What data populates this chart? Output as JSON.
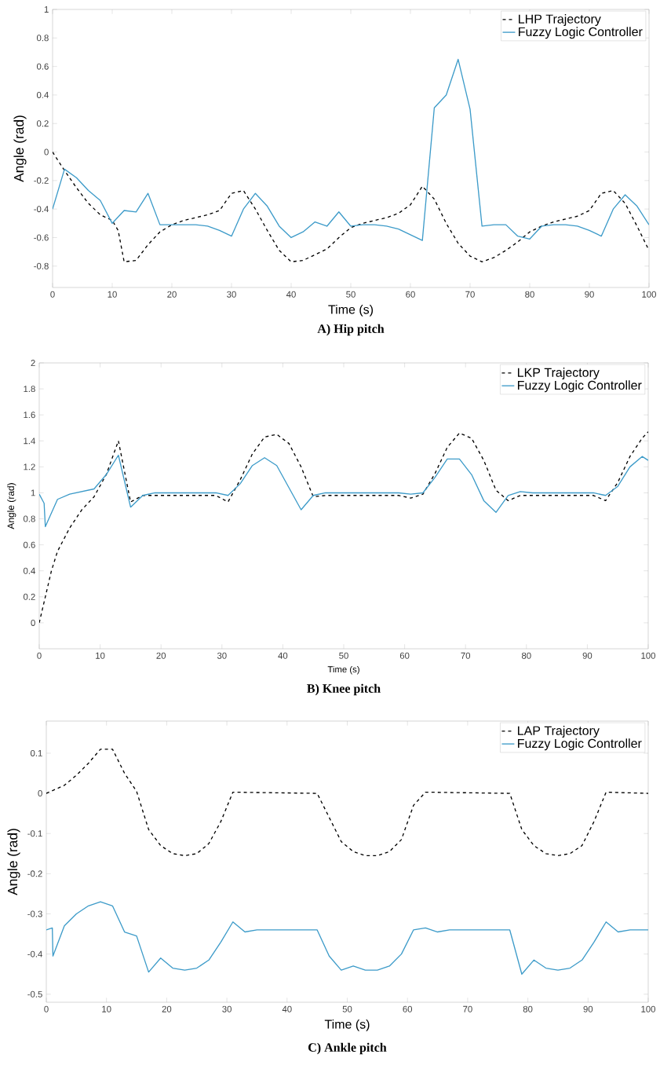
{
  "chart_data": [
    {
      "type": "line",
      "title": "**A) Hip pitch**",
      "xlabel": "Time (s)",
      "ylabel": "Angle (rad)",
      "xlim": [
        0,
        100
      ],
      "ylim": [
        -0.95,
        1
      ],
      "xticks": [
        0,
        10,
        20,
        30,
        40,
        50,
        60,
        70,
        80,
        90,
        100
      ],
      "yticks": [
        -0.8,
        -0.6,
        -0.4,
        -0.2,
        0,
        0.2,
        0.4,
        0.6,
        0.8,
        1
      ],
      "legend": "top right",
      "grid": false,
      "series": [
        {
          "name": "LHP  Trajectory",
          "color": "#000000",
          "line_style": "dashed",
          "x": [
            0,
            2,
            4,
            6,
            8,
            10,
            11,
            12,
            14,
            16,
            18,
            20,
            22,
            24,
            26,
            28,
            30,
            32,
            34,
            36,
            38,
            40,
            42,
            44,
            46,
            48,
            50,
            52,
            54,
            56,
            58,
            60,
            62,
            64,
            66,
            68,
            70,
            72,
            74,
            76,
            78,
            80,
            82,
            84,
            86,
            88,
            90,
            92,
            94,
            96,
            98,
            100
          ],
          "values": [
            0,
            -0.13,
            -0.25,
            -0.36,
            -0.44,
            -0.48,
            -0.55,
            -0.77,
            -0.76,
            -0.65,
            -0.56,
            -0.51,
            -0.48,
            -0.46,
            -0.44,
            -0.41,
            -0.29,
            -0.27,
            -0.4,
            -0.55,
            -0.69,
            -0.77,
            -0.76,
            -0.72,
            -0.68,
            -0.6,
            -0.53,
            -0.5,
            -0.48,
            -0.46,
            -0.43,
            -0.37,
            -0.24,
            -0.33,
            -0.5,
            -0.64,
            -0.73,
            -0.77,
            -0.74,
            -0.69,
            -0.63,
            -0.56,
            -0.52,
            -0.49,
            -0.47,
            -0.45,
            -0.41,
            -0.29,
            -0.27,
            -0.36,
            -0.52,
            -0.69
          ]
        },
        {
          "name": "Fuzzy Logic Controller",
          "color": "#3d9bc9",
          "line_style": "solid",
          "x": [
            0,
            2,
            4,
            6,
            8,
            10,
            12,
            14,
            16,
            18,
            20,
            22,
            24,
            26,
            28,
            30,
            32,
            34,
            36,
            38,
            40,
            42,
            44,
            46,
            48,
            50,
            52,
            54,
            56,
            58,
            60,
            62,
            64,
            66,
            68,
            70,
            72,
            74,
            76,
            78,
            80,
            82,
            84,
            86,
            88,
            90,
            92,
            94,
            96,
            98,
            100
          ],
          "values": [
            -0.4,
            -0.12,
            -0.18,
            -0.27,
            -0.34,
            -0.5,
            -0.41,
            -0.42,
            -0.29,
            -0.51,
            -0.51,
            -0.51,
            -0.51,
            -0.52,
            -0.55,
            -0.59,
            -0.4,
            -0.29,
            -0.38,
            -0.52,
            -0.6,
            -0.56,
            -0.49,
            -0.52,
            -0.42,
            -0.52,
            -0.51,
            -0.51,
            -0.52,
            -0.54,
            -0.58,
            -0.62,
            0.31,
            0.4,
            0.65,
            0.3,
            -0.52,
            -0.51,
            -0.51,
            -0.59,
            -0.61,
            -0.52,
            -0.51,
            -0.51,
            -0.52,
            -0.55,
            -0.59,
            -0.4,
            -0.3,
            -0.38,
            -0.51
          ]
        }
      ]
    },
    {
      "type": "line",
      "title": "**B) Knee pitch**",
      "xlabel": "Time (s)",
      "ylabel": "Angle (rad)",
      "xlim": [
        0,
        100
      ],
      "ylim": [
        -0.2,
        2
      ],
      "xticks": [
        0,
        10,
        20,
        30,
        40,
        50,
        60,
        70,
        80,
        90,
        100
      ],
      "yticks": [
        0,
        0.2,
        0.4,
        0.6,
        0.8,
        1,
        1.2,
        1.4,
        1.6,
        1.8,
        2
      ],
      "legend": "top right",
      "grid": false,
      "series": [
        {
          "name": "LKP Trajectory",
          "color": "#000000",
          "line_style": "dashed",
          "x": [
            0,
            1,
            2,
            3,
            5,
            7,
            9,
            11,
            13,
            15,
            17,
            21,
            29,
            31,
            33,
            35,
            37,
            39,
            41,
            43,
            45,
            47,
            59,
            61,
            63,
            65,
            67,
            69,
            71,
            73,
            75,
            77,
            79,
            91,
            93,
            95,
            97,
            99,
            100
          ],
          "values": [
            0,
            0.2,
            0.4,
            0.55,
            0.73,
            0.87,
            0.97,
            1.14,
            1.4,
            0.93,
            0.98,
            0.98,
            0.98,
            0.93,
            1.1,
            1.3,
            1.43,
            1.45,
            1.38,
            1.2,
            0.97,
            0.98,
            0.98,
            0.96,
            0.99,
            1.15,
            1.35,
            1.46,
            1.42,
            1.25,
            1.02,
            0.94,
            0.98,
            0.98,
            0.94,
            1.08,
            1.28,
            1.42,
            1.47
          ]
        },
        {
          "name": "Fuzzy Logic Controller",
          "color": "#3d9bc9",
          "line_style": "solid",
          "x": [
            0,
            0.8,
            1,
            3,
            5,
            9,
            11,
            13,
            15,
            17,
            19,
            29,
            31,
            33,
            35,
            37,
            39,
            43,
            45,
            47,
            59,
            61,
            63,
            65,
            67,
            69,
            71,
            73,
            75,
            77,
            79,
            81,
            91,
            93,
            95,
            97,
            99,
            100
          ],
          "values": [
            0.99,
            0.92,
            0.74,
            0.95,
            0.99,
            1.03,
            1.14,
            1.29,
            0.89,
            0.98,
            1.0,
            1.0,
            0.98,
            1.07,
            1.21,
            1.27,
            1.21,
            0.87,
            0.98,
            1.0,
            1.0,
            0.99,
            1.0,
            1.12,
            1.26,
            1.26,
            1.14,
            0.94,
            0.85,
            0.98,
            1.01,
            1.0,
            1.0,
            0.98,
            1.05,
            1.2,
            1.28,
            1.25
          ]
        }
      ]
    },
    {
      "type": "line",
      "title": "**C) Ankle pitch**",
      "xlabel": "Time (s)",
      "ylabel": "Angle (rad)",
      "xlim": [
        0,
        100
      ],
      "ylim": [
        -0.52,
        0.18
      ],
      "xticks": [
        0,
        10,
        20,
        30,
        40,
        50,
        60,
        70,
        80,
        90,
        100
      ],
      "yticks": [
        -0.5,
        -0.4,
        -0.3,
        -0.2,
        -0.1,
        0,
        0.1
      ],
      "legend": "top right",
      "grid": false,
      "series": [
        {
          "name": "LAP Trajectory",
          "color": "#000000",
          "line_style": "dashed",
          "x": [
            0,
            3,
            5,
            7,
            9,
            11,
            13,
            15,
            17,
            19,
            21,
            23,
            25,
            27,
            29,
            31,
            45,
            47,
            49,
            51,
            53,
            55,
            57,
            59,
            61,
            63,
            77,
            79,
            81,
            83,
            85,
            87,
            89,
            91,
            93,
            100
          ],
          "values": [
            0,
            0.02,
            0.045,
            0.075,
            0.11,
            0.11,
            0.05,
            0.005,
            -0.09,
            -0.13,
            -0.15,
            -0.155,
            -0.15,
            -0.125,
            -0.07,
            0.003,
            0,
            -0.06,
            -0.12,
            -0.145,
            -0.155,
            -0.155,
            -0.145,
            -0.115,
            -0.03,
            0.003,
            0,
            -0.09,
            -0.13,
            -0.15,
            -0.155,
            -0.15,
            -0.13,
            -0.07,
            0.003,
            0
          ]
        },
        {
          "name": "Fuzzy Logic Controller",
          "color": "#3d9bc9",
          "line_style": "solid",
          "x": [
            0,
            1,
            1.1,
            3,
            5,
            7,
            9,
            11,
            13,
            15,
            17,
            19,
            21,
            23,
            25,
            27,
            29,
            31,
            33,
            35,
            45,
            47,
            49,
            51,
            53,
            55,
            57,
            59,
            61,
            63,
            65,
            67,
            77,
            79,
            81,
            83,
            85,
            87,
            89,
            91,
            93,
            95,
            97,
            100
          ],
          "values": [
            -0.34,
            -0.335,
            -0.405,
            -0.33,
            -0.3,
            -0.28,
            -0.27,
            -0.28,
            -0.345,
            -0.355,
            -0.445,
            -0.41,
            -0.435,
            -0.44,
            -0.435,
            -0.415,
            -0.37,
            -0.32,
            -0.345,
            -0.34,
            -0.34,
            -0.405,
            -0.44,
            -0.43,
            -0.44,
            -0.44,
            -0.43,
            -0.4,
            -0.34,
            -0.335,
            -0.345,
            -0.34,
            -0.34,
            -0.45,
            -0.415,
            -0.435,
            -0.44,
            -0.435,
            -0.415,
            -0.37,
            -0.32,
            -0.345,
            -0.34,
            -0.34
          ]
        }
      ]
    }
  ]
}
